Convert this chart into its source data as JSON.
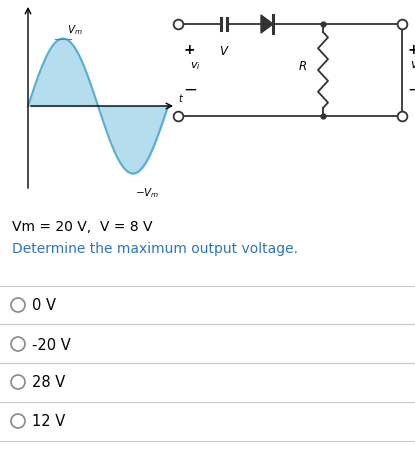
{
  "background_color": "#ffffff",
  "param_text": "Vm = 20 V,  V = 8 V",
  "question_text": "Determine the maximum output voltage.",
  "options": [
    "0 V",
    "-20 V",
    "28 V",
    "12 V"
  ],
  "question_color": "#2e75b6",
  "param_color": "#000000",
  "divider_color": "#c8c8c8",
  "waveform_stroke": "#5aafd0",
  "waveform_fill": "#a8d8ea",
  "circuit_color": "#333333"
}
